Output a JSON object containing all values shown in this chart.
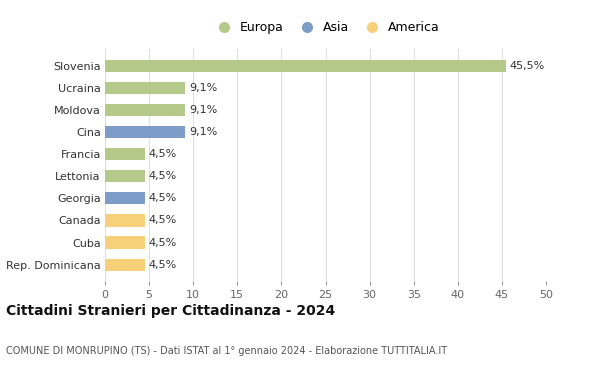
{
  "categories": [
    "Rep. Dominicana",
    "Cuba",
    "Canada",
    "Georgia",
    "Lettonia",
    "Francia",
    "Cina",
    "Moldova",
    "Ucraina",
    "Slovenia"
  ],
  "values": [
    4.5,
    4.5,
    4.5,
    4.5,
    4.5,
    4.5,
    9.1,
    9.1,
    9.1,
    45.5
  ],
  "labels": [
    "4,5%",
    "4,5%",
    "4,5%",
    "4,5%",
    "4,5%",
    "4,5%",
    "9,1%",
    "9,1%",
    "9,1%",
    "45,5%"
  ],
  "continent": [
    "America",
    "America",
    "America",
    "Asia",
    "Europa",
    "Europa",
    "Asia",
    "Europa",
    "Europa",
    "Europa"
  ],
  "colors": {
    "Europa": "#b5c98a",
    "Asia": "#7b9dc7",
    "America": "#f7d07a"
  },
  "title": "Cittadini Stranieri per Cittadinanza - 2024",
  "subtitle": "COMUNE DI MONRUPINO (TS) - Dati ISTAT al 1° gennaio 2024 - Elaborazione TUTTITALIA.IT",
  "xlim": [
    0,
    50
  ],
  "xticks": [
    0,
    5,
    10,
    15,
    20,
    25,
    30,
    35,
    40,
    45,
    50
  ],
  "background_color": "#ffffff",
  "grid_color": "#dddddd",
  "bar_height": 0.55,
  "label_fontsize": 8,
  "tick_fontsize": 8,
  "ytick_fontsize": 8,
  "legend_fontsize": 9,
  "title_fontsize": 10,
  "subtitle_fontsize": 7
}
